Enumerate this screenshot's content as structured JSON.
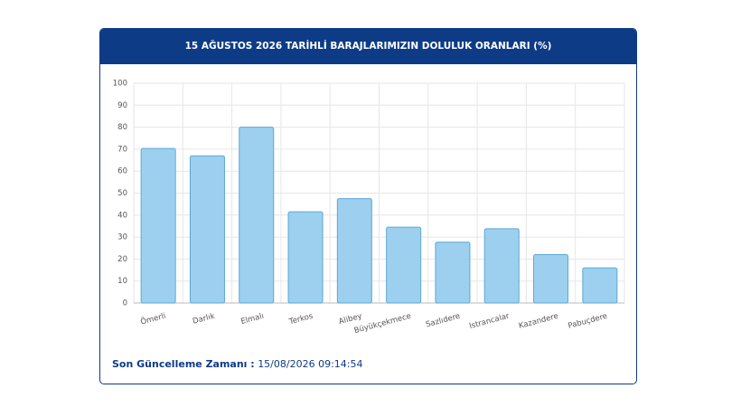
{
  "chart_data": {
    "type": "bar",
    "title": "15 AĞUSTOS 2026 TARİHLİ BARAJLARIMIZIN DOLULUK ORANLARI (%)",
    "categories": [
      "Ömerli",
      "Darlık",
      "Elmalı",
      "Terkos",
      "Alibey",
      "Büyükçekmece",
      "Sazlıdere",
      "Istrancalar",
      "Kazandere",
      "Pabuçdere"
    ],
    "values": [
      70.3,
      67,
      80,
      41.5,
      47.5,
      34.5,
      27.7,
      33.8,
      22,
      16
    ],
    "color": "#9dd0ee",
    "border_color": "#5aa8d8",
    "ylim": [
      0,
      100
    ],
    "yticks": [
      0,
      10,
      20,
      30,
      40,
      50,
      60,
      70,
      80,
      90,
      100
    ],
    "grid": true
  },
  "footer": {
    "label": "Son Güncelleme Zamanı :",
    "value": "15/08/2026 09:14:54"
  }
}
